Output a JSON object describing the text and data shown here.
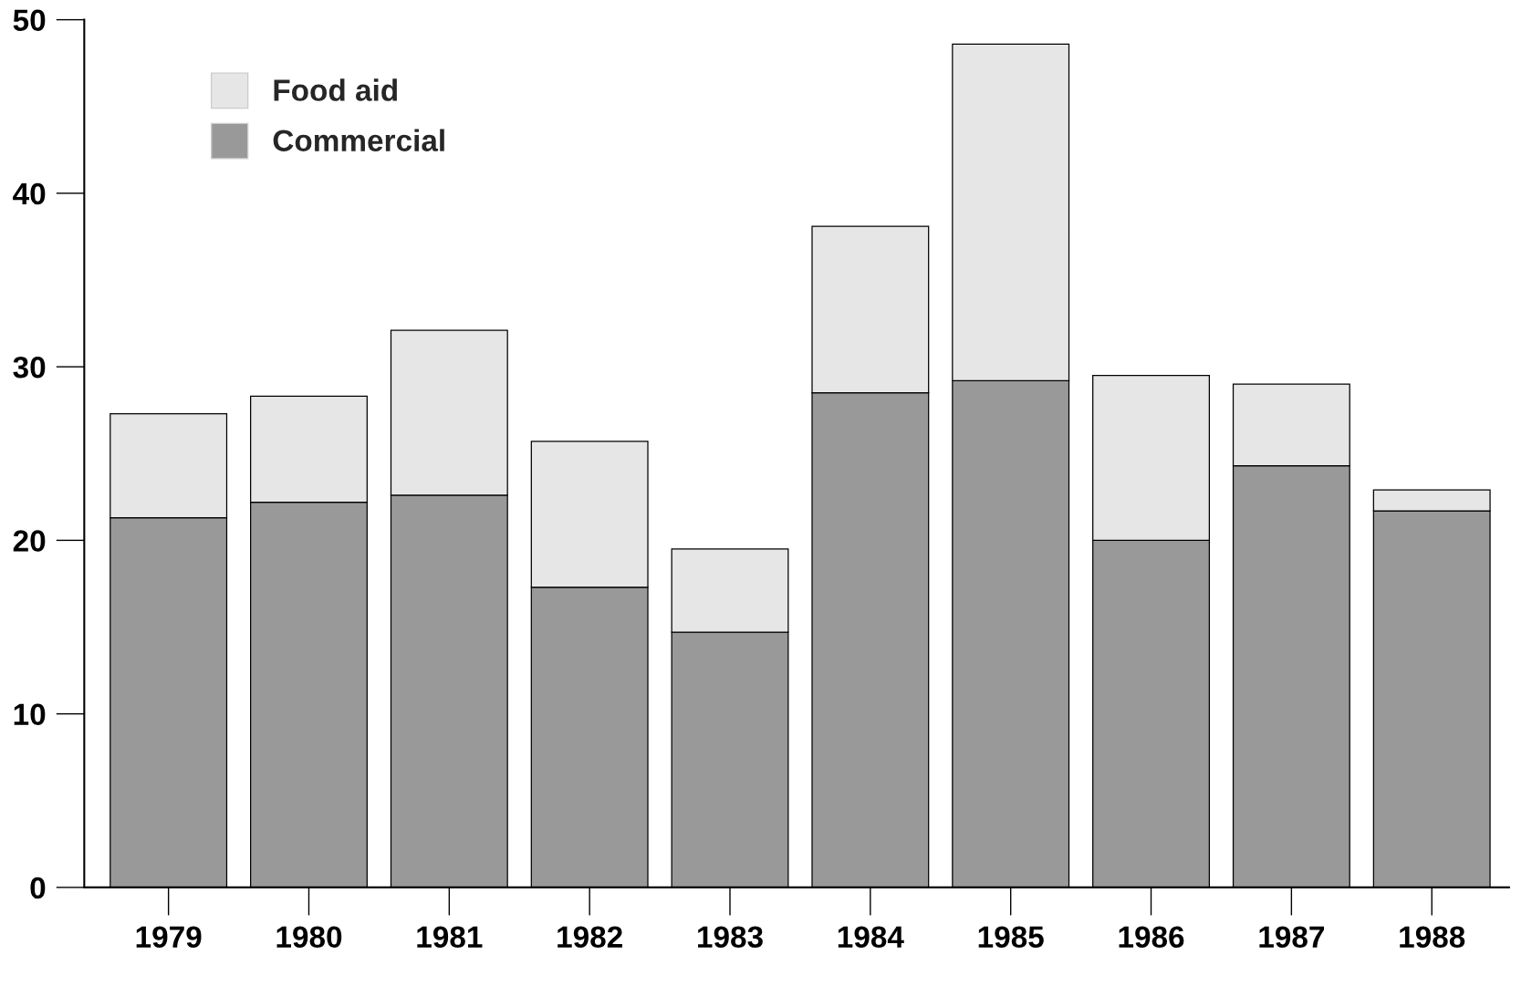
{
  "chart_data": {
    "type": "bar",
    "stacked": true,
    "categories": [
      "1979",
      "1980",
      "1981",
      "1982",
      "1983",
      "1984",
      "1985",
      "1986",
      "1987",
      "1988"
    ],
    "series": [
      {
        "name": "Commercial",
        "color": "#999999",
        "values": [
          21.3,
          22.2,
          22.6,
          17.3,
          14.7,
          28.5,
          29.2,
          20.0,
          24.3,
          21.7
        ]
      },
      {
        "name": "Food aid",
        "color": "#e6e6e6",
        "values": [
          6.0,
          6.1,
          9.5,
          8.4,
          4.8,
          9.6,
          19.4,
          9.5,
          4.7,
          1.2
        ]
      }
    ],
    "ylim": [
      0,
      50
    ],
    "yticks": [
      0,
      10,
      20,
      30,
      40,
      50
    ],
    "grid": false,
    "legend": "top left"
  }
}
